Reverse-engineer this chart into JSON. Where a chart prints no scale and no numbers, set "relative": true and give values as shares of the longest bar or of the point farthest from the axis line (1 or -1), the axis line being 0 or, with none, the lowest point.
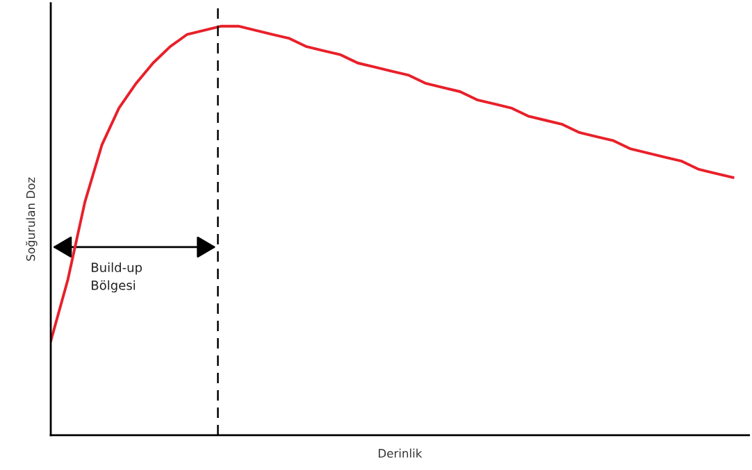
{
  "chart_data": {
    "type": "line",
    "relative": true,
    "xlabel": "Derinlik",
    "ylabel": "Soğurulan Doz",
    "categories": [
      null,
      null,
      null,
      null,
      null,
      null,
      null,
      null,
      null,
      null,
      null,
      null,
      null,
      null,
      null,
      null,
      null,
      null,
      null,
      null,
      null,
      null,
      null,
      null,
      null,
      null,
      null,
      null,
      null,
      null,
      null,
      null,
      null,
      null,
      null,
      null,
      null,
      null,
      null,
      null,
      null
    ],
    "series": [
      {
        "color": "#e8202a",
        "values": [
          0.23,
          0.38,
          0.57,
          0.71,
          0.8,
          0.86,
          0.91,
          0.95,
          0.98,
          0.99,
          1.0,
          1.0,
          0.99,
          0.98,
          0.97,
          0.95,
          0.94,
          0.93,
          0.91,
          0.9,
          0.89,
          0.88,
          0.86,
          0.85,
          0.84,
          0.82,
          0.81,
          0.8,
          0.78,
          0.77,
          0.76,
          0.74,
          0.73,
          0.72,
          0.7,
          0.69,
          0.68,
          0.67,
          0.65,
          0.64,
          0.63
        ]
      }
    ],
    "annotations": [
      "Build-up\nBölgesi"
    ],
    "grid": false,
    "legend": false,
    "marker": "none",
    "line_style": "solid",
    "tick_labels": false
  }
}
